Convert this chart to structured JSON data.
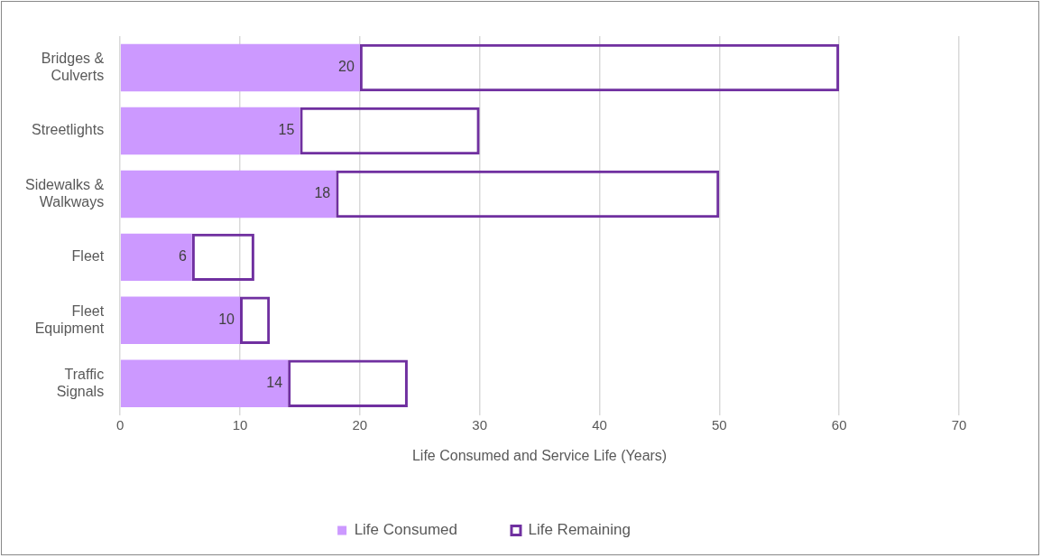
{
  "chart_data": {
    "type": "bar",
    "orientation": "horizontal",
    "stacked": true,
    "categories": [
      "Bridges & Culverts",
      "Streetlights",
      "Sidewalks & Walkways",
      "Fleet",
      "Fleet Equipment",
      "Traffic Signals"
    ],
    "series": [
      {
        "name": "Life Consumed",
        "color": "#cc99ff",
        "values": [
          20,
          15,
          18,
          6,
          10,
          14
        ],
        "value_labels": [
          "20",
          "15",
          "18",
          "6",
          "10",
          "14"
        ]
      },
      {
        "name": "Life Remaining",
        "color": "#7030a0",
        "values": [
          40,
          15,
          32,
          5.2,
          2.5,
          10
        ]
      }
    ],
    "xlabel": "Life Consumed and Service Life (Years)",
    "xlim": [
      0,
      70
    ],
    "xticks": [
      0,
      10,
      20,
      30,
      40,
      50,
      60,
      70
    ],
    "grid": "x",
    "legend": "bottom"
  }
}
